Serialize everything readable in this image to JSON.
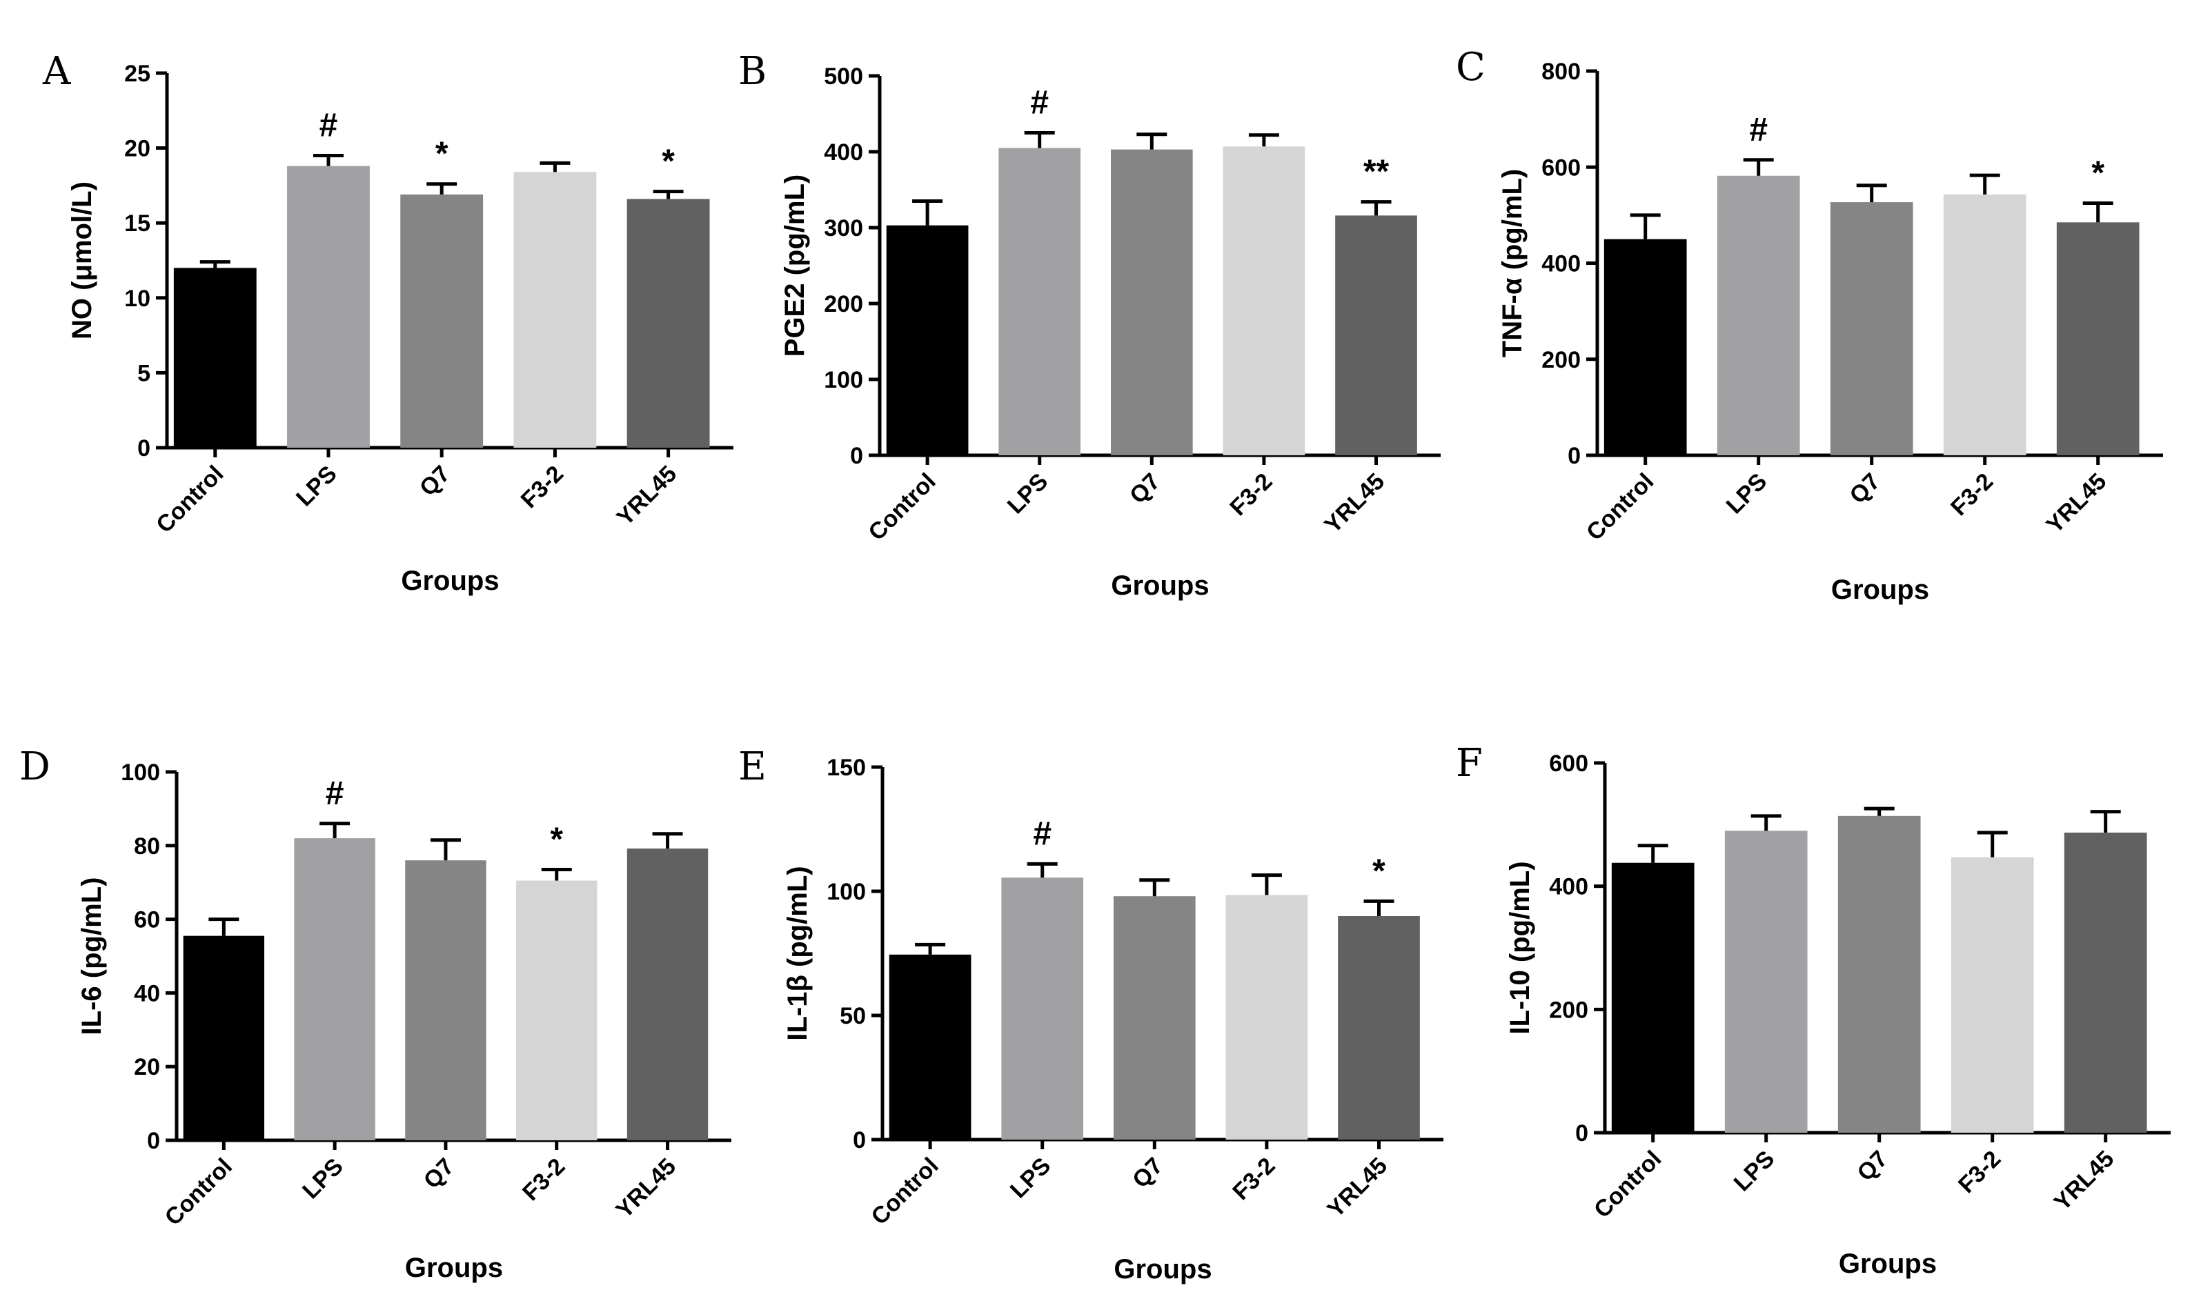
{
  "chart_data": [
    {
      "panel": "A",
      "type": "bar",
      "categories": [
        "Control",
        "LPS",
        "Q7",
        "F3-2",
        "YRL45"
      ],
      "values": [
        12.0,
        18.8,
        16.9,
        18.4,
        16.6
      ],
      "errors": [
        0.4,
        0.7,
        0.7,
        0.6,
        0.5
      ],
      "significance": [
        "",
        "#",
        "*",
        "",
        "*"
      ],
      "colors": [
        "#000000",
        "#a1a1a3",
        "#858585",
        "#d5d5d5",
        "#616161"
      ],
      "ylabel": "NO (μmol/L)",
      "xlabel": "Groups",
      "ylim": [
        0,
        25
      ],
      "yticks": [
        0,
        5,
        10,
        15,
        20,
        25
      ],
      "ytick_labels": [
        "0",
        "5",
        "10",
        "15",
        "20",
        "25"
      ]
    },
    {
      "panel": "B",
      "type": "bar",
      "categories": [
        "Control",
        "LPS",
        "Q7",
        "F3-2",
        "YRL45"
      ],
      "values": [
        303,
        405,
        403,
        407,
        316
      ],
      "errors": [
        32,
        20,
        20,
        15,
        18
      ],
      "significance": [
        "",
        "#",
        "",
        "",
        "**"
      ],
      "colors": [
        "#000000",
        "#a1a1a3",
        "#858585",
        "#d5d5d5",
        "#616161"
      ],
      "ylabel": "PGE2 (pg/mL)",
      "xlabel": "Groups",
      "ylim": [
        0,
        500
      ],
      "yticks": [
        0,
        100,
        200,
        300,
        400,
        500
      ],
      "ytick_labels": [
        "0",
        "100",
        "200",
        "300",
        "400",
        "500"
      ]
    },
    {
      "panel": "C",
      "type": "bar",
      "categories": [
        "Control",
        "LPS",
        "Q7",
        "F3-2",
        "YRL45"
      ],
      "values": [
        450,
        582,
        527,
        543,
        485
      ],
      "errors": [
        50,
        33,
        35,
        40,
        40
      ],
      "significance": [
        "",
        "#",
        "",
        "",
        "*"
      ],
      "colors": [
        "#000000",
        "#a1a1a3",
        "#858585",
        "#d5d5d5",
        "#616161"
      ],
      "ylabel": "TNF-α (pg/mL)",
      "xlabel": "Groups",
      "ylim": [
        0,
        800
      ],
      "yticks": [
        0,
        200,
        400,
        600,
        800
      ],
      "ytick_labels": [
        "0",
        "200",
        "400",
        "600",
        "800"
      ]
    },
    {
      "panel": "D",
      "type": "bar",
      "categories": [
        "Control",
        "LPS",
        "Q7",
        "F3-2",
        "YRL45"
      ],
      "values": [
        55.5,
        82.0,
        76.0,
        70.5,
        79.2
      ],
      "errors": [
        4.5,
        4.0,
        5.5,
        3.0,
        4.0
      ],
      "significance": [
        "",
        "#",
        "",
        "*",
        ""
      ],
      "colors": [
        "#000000",
        "#a1a1a3",
        "#858585",
        "#d5d5d5",
        "#616161"
      ],
      "ylabel": "IL-6 (pg/mL)",
      "xlabel": "Groups",
      "ylim": [
        0,
        100
      ],
      "yticks": [
        0,
        20,
        40,
        60,
        80,
        100
      ],
      "ytick_labels": [
        "0",
        "20",
        "40",
        "60",
        "80",
        "100"
      ]
    },
    {
      "panel": "E",
      "type": "bar",
      "categories": [
        "Control",
        "LPS",
        "Q7",
        "F3-2",
        "YRL45"
      ],
      "values": [
        74.5,
        105.5,
        98.0,
        98.5,
        90.0
      ],
      "errors": [
        4.0,
        5.5,
        6.5,
        8.0,
        6.0
      ],
      "significance": [
        "",
        "#",
        "",
        "",
        "*"
      ],
      "colors": [
        "#000000",
        "#a1a1a3",
        "#858585",
        "#d5d5d5",
        "#616161"
      ],
      "ylabel": "IL-1β (pg/mL)",
      "xlabel": "Groups",
      "ylim": [
        0,
        150
      ],
      "yticks": [
        0,
        50,
        100,
        150
      ],
      "ytick_labels": [
        "0",
        "50",
        "100",
        "150"
      ]
    },
    {
      "panel": "F",
      "type": "bar",
      "categories": [
        "Control",
        "LPS",
        "Q7",
        "F3-2",
        "YRL45"
      ],
      "values": [
        438,
        490,
        514,
        447,
        487
      ],
      "errors": [
        28,
        24,
        12,
        40,
        34
      ],
      "significance": [
        "",
        "",
        "",
        "",
        ""
      ],
      "colors": [
        "#000000",
        "#a1a1a3",
        "#858585",
        "#d5d5d5",
        "#616161"
      ],
      "ylabel": "IL-10 (pg/mL)",
      "xlabel": "Groups",
      "ylim": [
        0,
        600
      ],
      "yticks": [
        0,
        200,
        400,
        600
      ],
      "ytick_labels": [
        "0",
        "200",
        "400",
        "600"
      ]
    }
  ]
}
